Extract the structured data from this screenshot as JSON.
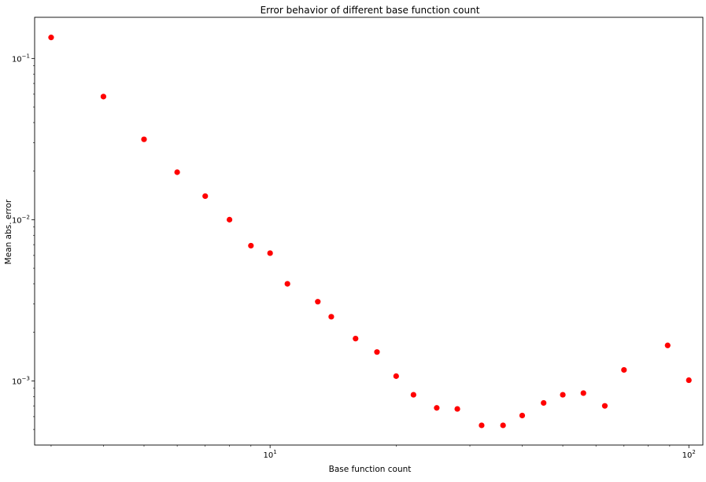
{
  "chart_data": {
    "type": "scatter",
    "title": "Error behavior of different base function count",
    "xlabel": "Base function count",
    "ylabel": "Mean abs. error",
    "xscale": "log",
    "yscale": "log",
    "xlim": [
      2.74,
      108
    ],
    "ylim": [
      0.0004,
      0.18
    ],
    "grid": false,
    "marker_color": "#ff0000",
    "x_ticks": [
      {
        "value": 10,
        "base": "10",
        "exp": "1"
      },
      {
        "value": 100,
        "base": "10",
        "exp": "2"
      }
    ],
    "y_ticks": [
      {
        "value": 0.001,
        "base": "10",
        "exp": "−3"
      },
      {
        "value": 0.01,
        "base": "10",
        "exp": "−2"
      },
      {
        "value": 0.1,
        "base": "10",
        "exp": "−1"
      }
    ],
    "series": [
      {
        "points": [
          {
            "x": 3,
            "y": 0.135
          },
          {
            "x": 4,
            "y": 0.058
          },
          {
            "x": 5,
            "y": 0.0315
          },
          {
            "x": 6,
            "y": 0.0197
          },
          {
            "x": 7,
            "y": 0.014
          },
          {
            "x": 8,
            "y": 0.01
          },
          {
            "x": 9,
            "y": 0.0069
          },
          {
            "x": 10,
            "y": 0.0062
          },
          {
            "x": 11,
            "y": 0.004
          },
          {
            "x": 13,
            "y": 0.0031
          },
          {
            "x": 14,
            "y": 0.0025
          },
          {
            "x": 16,
            "y": 0.00183
          },
          {
            "x": 18,
            "y": 0.00151
          },
          {
            "x": 20,
            "y": 0.00107
          },
          {
            "x": 22,
            "y": 0.00082
          },
          {
            "x": 25,
            "y": 0.00068
          },
          {
            "x": 28,
            "y": 0.00067
          },
          {
            "x": 32,
            "y": 0.00053
          },
          {
            "x": 36,
            "y": 0.00053
          },
          {
            "x": 40,
            "y": 0.00061
          },
          {
            "x": 45,
            "y": 0.00073
          },
          {
            "x": 50,
            "y": 0.00082
          },
          {
            "x": 56,
            "y": 0.00084
          },
          {
            "x": 63,
            "y": 0.0007
          },
          {
            "x": 70,
            "y": 0.00117
          },
          {
            "x": 89,
            "y": 0.00166
          },
          {
            "x": 100,
            "y": 0.00101
          }
        ]
      }
    ]
  }
}
